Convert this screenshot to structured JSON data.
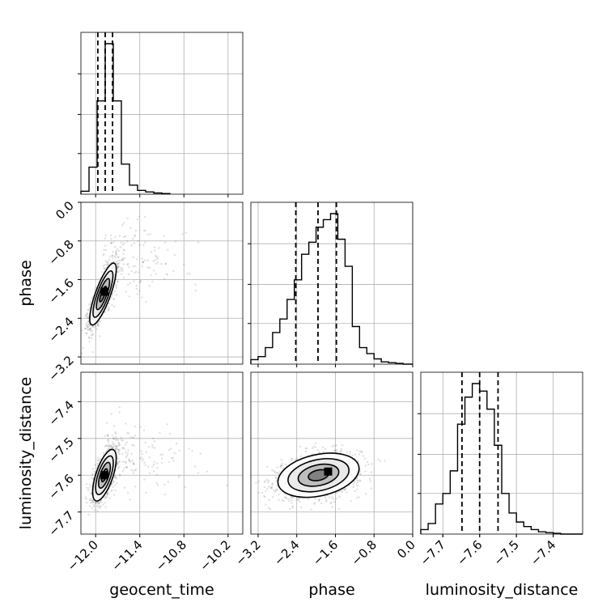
{
  "chart_data": {
    "type": "corner",
    "parameters": [
      "geocent_time",
      "phase",
      "luminosity_distance"
    ],
    "axis_labels": {
      "x": [
        "geocent_time",
        "phase",
        "luminosity_distance"
      ],
      "y": [
        "",
        "phase",
        "luminosity_distance"
      ]
    },
    "ranges": {
      "geocent_time": [
        -12.2,
        -10.0
      ],
      "phase": [
        -3.35,
        0.0
      ],
      "luminosity_distance": [
        -7.76,
        -7.32
      ]
    },
    "ticks": {
      "geocent_time": [
        -12.0,
        -11.4,
        -10.8,
        -10.2
      ],
      "phase": [
        -3.2,
        -2.4,
        -1.6,
        -0.8,
        0.0
      ],
      "luminosity_distance": [
        -7.7,
        -7.6,
        -7.5,
        -7.4
      ]
    },
    "tick_labels": {
      "geocent_time": [
        "−12.0",
        "−11.4",
        "−10.8",
        "−10.2"
      ],
      "phase": [
        "−3.2",
        "−2.4",
        "−1.6",
        "−0.8",
        "0.0"
      ],
      "luminosity_distance": [
        "−7.7",
        "−7.6",
        "−7.5",
        "−7.4"
      ]
    },
    "grid": true,
    "quantiles": {
      "geocent_time": [
        -11.97,
        -11.87,
        -11.77
      ],
      "phase": [
        -2.42,
        -1.96,
        -1.58
      ],
      "luminosity_distance": [
        -7.648,
        -7.6,
        -7.55
      ]
    },
    "histograms": {
      "geocent_time": {
        "edges": [
          -12.2,
          -12.09,
          -11.98,
          -11.87,
          -11.76,
          -11.65,
          -11.54,
          -11.43,
          -11.32,
          -11.21,
          -11.1,
          -10.99
        ],
        "counts": [
          0.02,
          0.18,
          0.62,
          1.0,
          0.62,
          0.2,
          0.06,
          0.025,
          0.015,
          0.008,
          0.004,
          0.0
        ]
      },
      "phase": {
        "edges": [
          -3.35,
          -3.2,
          -3.05,
          -2.9,
          -2.75,
          -2.6,
          -2.45,
          -2.3,
          -2.15,
          -2.0,
          -1.85,
          -1.7,
          -1.55,
          -1.4,
          -1.25,
          -1.1,
          -0.95,
          -0.8,
          -0.65,
          -0.5,
          -0.35,
          -0.2,
          0.0
        ],
        "counts": [
          0.03,
          0.05,
          0.11,
          0.21,
          0.3,
          0.43,
          0.56,
          0.73,
          0.81,
          0.91,
          0.96,
          1.0,
          0.83,
          0.65,
          0.25,
          0.11,
          0.07,
          0.035,
          0.015,
          0.01,
          0.005,
          0.0
        ]
      },
      "luminosity_distance": {
        "edges": [
          -7.76,
          -7.74,
          -7.72,
          -7.7,
          -7.68,
          -7.66,
          -7.64,
          -7.62,
          -7.6,
          -7.58,
          -7.56,
          -7.54,
          -7.52,
          -7.5,
          -7.48,
          -7.46,
          -7.44,
          -7.42,
          -7.4,
          -7.38,
          -7.36,
          -7.34,
          -7.32
        ],
        "counts": [
          0.03,
          0.07,
          0.2,
          0.27,
          0.42,
          0.73,
          0.91,
          1.0,
          0.95,
          0.83,
          0.59,
          0.27,
          0.14,
          0.08,
          0.05,
          0.03,
          0.015,
          0.01,
          0.005,
          0.0,
          0.0,
          0.0
        ]
      }
    },
    "joint_2d": [
      {
        "x": "geocent_time",
        "y": "phase",
        "mean": [
          -11.9,
          -1.9
        ],
        "sd": [
          0.09,
          0.32
        ],
        "correlation": 0.8,
        "contour_levels": [
          0.5,
          1.0,
          1.5,
          2.0
        ],
        "peak": [
          -11.88,
          -1.85
        ]
      },
      {
        "x": "geocent_time",
        "y": "luminosity_distance",
        "mean": [
          -11.88,
          -7.6
        ],
        "sd": [
          0.08,
          0.035
        ],
        "correlation": 0.65,
        "contour_levels": [
          0.5,
          1.0,
          1.5,
          2.0
        ],
        "peak": [
          -11.88,
          -7.6
        ]
      },
      {
        "x": "phase",
        "y": "luminosity_distance",
        "mean": [
          -1.95,
          -7.6
        ],
        "sd": [
          0.42,
          0.03
        ],
        "correlation": 0.3,
        "contour_levels": [
          0.5,
          1.0,
          1.5,
          2.0
        ],
        "peak": [
          -1.75,
          -7.59
        ]
      }
    ]
  }
}
